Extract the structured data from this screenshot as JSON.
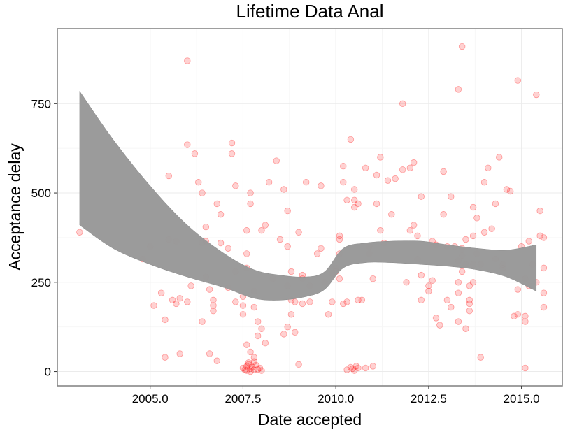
{
  "chart_data": {
    "type": "scatter",
    "title": "Lifetime Data Anal",
    "xlabel": "Date accepted",
    "ylabel": "Acceptance delay",
    "xlim": [
      2002.5,
      2016.1
    ],
    "ylim": [
      -40,
      960
    ],
    "x_ticks": [
      2005.0,
      2007.5,
      2010.0,
      2012.5,
      2015.0
    ],
    "x_tick_labels": [
      "2005.0",
      "2007.5",
      "2010.0",
      "2012.5",
      "2015.0"
    ],
    "y_ticks": [
      0,
      250,
      500,
      750
    ],
    "y_tick_labels": [
      "0",
      "250",
      "500",
      "750"
    ],
    "grid": true,
    "legend": "none",
    "point_color": "#ff0000",
    "band_color": "#999999",
    "points": [
      [
        2003.1,
        390
      ],
      [
        2004.8,
        315
      ],
      [
        2005.0,
        350
      ],
      [
        2005.1,
        185
      ],
      [
        2005.3,
        220
      ],
      [
        2005.4,
        145
      ],
      [
        2005.4,
        40
      ],
      [
        2005.5,
        548
      ],
      [
        2005.5,
        370
      ],
      [
        2005.6,
        200
      ],
      [
        2005.7,
        365
      ],
      [
        2005.7,
        190
      ],
      [
        2005.8,
        50
      ],
      [
        2005.8,
        205
      ],
      [
        2006.0,
        635
      ],
      [
        2006.0,
        195
      ],
      [
        2006.0,
        870
      ],
      [
        2006.1,
        240
      ],
      [
        2006.2,
        610
      ],
      [
        2006.3,
        530
      ],
      [
        2006.4,
        500
      ],
      [
        2006.4,
        140
      ],
      [
        2006.5,
        405
      ],
      [
        2006.5,
        365
      ],
      [
        2006.4,
        360
      ],
      [
        2006.5,
        265
      ],
      [
        2006.6,
        230
      ],
      [
        2006.6,
        50
      ],
      [
        2006.7,
        200
      ],
      [
        2006.7,
        185
      ],
      [
        2006.7,
        170
      ],
      [
        2006.8,
        30
      ],
      [
        2006.8,
        470
      ],
      [
        2006.9,
        360
      ],
      [
        2006.9,
        440
      ],
      [
        2007.1,
        345
      ],
      [
        2007.2,
        610
      ],
      [
        2007.1,
        235
      ],
      [
        2007.2,
        640
      ],
      [
        2007.3,
        520
      ],
      [
        2007.3,
        280
      ],
      [
        2007.3,
        195
      ],
      [
        2007.5,
        210
      ],
      [
        2007.5,
        185
      ],
      [
        2007.6,
        330
      ],
      [
        2007.6,
        395
      ],
      [
        2007.6,
        290
      ],
      [
        2007.7,
        470
      ],
      [
        2007.7,
        500
      ],
      [
        2007.8,
        225
      ],
      [
        2007.8,
        180
      ],
      [
        2007.5,
        160
      ],
      [
        2007.6,
        75
      ],
      [
        2007.7,
        55
      ],
      [
        2007.8,
        40
      ],
      [
        2007.9,
        100
      ],
      [
        2007.9,
        140
      ],
      [
        2008.0,
        120
      ],
      [
        2008.1,
        80
      ],
      [
        2008.0,
        395
      ],
      [
        2008.1,
        410
      ],
      [
        2008.2,
        530
      ],
      [
        2008.3,
        260
      ],
      [
        2008.4,
        590
      ],
      [
        2008.5,
        370
      ],
      [
        2008.6,
        510
      ],
      [
        2008.7,
        240
      ],
      [
        2008.7,
        350
      ],
      [
        2008.7,
        450
      ],
      [
        2008.8,
        280
      ],
      [
        2008.6,
        105
      ],
      [
        2008.7,
        125
      ],
      [
        2008.8,
        160
      ],
      [
        2008.8,
        200
      ],
      [
        2008.9,
        110
      ],
      [
        2008.9,
        195
      ],
      [
        2009.0,
        390
      ],
      [
        2009.0,
        20
      ],
      [
        2009.1,
        260
      ],
      [
        2009.1,
        270
      ],
      [
        2009.1,
        190
      ],
      [
        2009.2,
        530
      ],
      [
        2009.3,
        240
      ],
      [
        2009.3,
        195
      ],
      [
        2009.5,
        330
      ],
      [
        2009.6,
        345
      ],
      [
        2009.6,
        520
      ],
      [
        2009.7,
        250
      ],
      [
        2009.8,
        160
      ],
      [
        2009.9,
        195
      ],
      [
        2009.9,
        275
      ],
      [
        2010.0,
        280
      ],
      [
        2010.0,
        290
      ],
      [
        2010.1,
        260
      ],
      [
        2010.1,
        330
      ],
      [
        2010.1,
        370
      ],
      [
        2010.1,
        380
      ],
      [
        2010.2,
        530
      ],
      [
        2010.2,
        575
      ],
      [
        2010.2,
        190
      ],
      [
        2010.3,
        480
      ],
      [
        2010.3,
        195
      ],
      [
        2010.4,
        650
      ],
      [
        2010.5,
        480
      ],
      [
        2010.5,
        510
      ],
      [
        2010.5,
        460
      ],
      [
        2010.6,
        470
      ],
      [
        2010.6,
        200
      ],
      [
        2010.7,
        200
      ],
      [
        2010.8,
        10
      ],
      [
        2010.8,
        570
      ],
      [
        2010.9,
        350
      ],
      [
        2010.9,
        330
      ],
      [
        2011.0,
        15
      ],
      [
        2011.0,
        260
      ],
      [
        2011.1,
        470
      ],
      [
        2011.1,
        550
      ],
      [
        2011.2,
        600
      ],
      [
        2011.2,
        395
      ],
      [
        2011.3,
        360
      ],
      [
        2011.4,
        535
      ],
      [
        2011.5,
        440
      ],
      [
        2011.6,
        540
      ],
      [
        2011.8,
        750
      ],
      [
        2011.8,
        565
      ],
      [
        2011.9,
        250
      ],
      [
        2012.0,
        570
      ],
      [
        2012.0,
        395
      ],
      [
        2012.1,
        410
      ],
      [
        2012.2,
        380
      ],
      [
        2012.2,
        315
      ],
      [
        2012.3,
        270
      ],
      [
        2012.3,
        200
      ],
      [
        2012.5,
        240
      ],
      [
        2012.5,
        225
      ],
      [
        2012.6,
        255
      ],
      [
        2012.6,
        365
      ],
      [
        2012.7,
        355
      ],
      [
        2012.7,
        150
      ],
      [
        2012.8,
        130
      ],
      [
        2012.9,
        560
      ],
      [
        2012.9,
        440
      ],
      [
        2013.0,
        350
      ],
      [
        2013.0,
        200
      ],
      [
        2013.1,
        180
      ],
      [
        2013.1,
        490
      ],
      [
        2013.2,
        350
      ],
      [
        2013.3,
        140
      ],
      [
        2013.3,
        220
      ],
      [
        2013.3,
        250
      ],
      [
        2013.3,
        310
      ],
      [
        2013.4,
        345
      ],
      [
        2013.4,
        280
      ],
      [
        2013.4,
        325
      ],
      [
        2013.5,
        300
      ],
      [
        2013.5,
        120
      ],
      [
        2013.5,
        370
      ],
      [
        2013.6,
        200
      ],
      [
        2013.6,
        170
      ],
      [
        2013.6,
        190
      ],
      [
        2013.6,
        240
      ],
      [
        2013.7,
        250
      ],
      [
        2013.7,
        380
      ],
      [
        2013.7,
        460
      ],
      [
        2013.7,
        300
      ],
      [
        2013.8,
        430
      ],
      [
        2013.8,
        330
      ],
      [
        2013.9,
        40
      ],
      [
        2013.9,
        300
      ],
      [
        2014.0,
        390
      ],
      [
        2014.0,
        530
      ],
      [
        2014.1,
        570
      ],
      [
        2014.2,
        400
      ],
      [
        2014.3,
        470
      ],
      [
        2014.3,
        315
      ],
      [
        2014.4,
        600
      ],
      [
        2014.5,
        300
      ],
      [
        2014.5,
        290
      ],
      [
        2014.6,
        510
      ],
      [
        2014.7,
        505
      ],
      [
        2014.8,
        155
      ],
      [
        2014.9,
        160
      ],
      [
        2014.9,
        230
      ],
      [
        2014.9,
        815
      ],
      [
        2015.0,
        350
      ],
      [
        2015.1,
        10
      ],
      [
        2015.1,
        260
      ],
      [
        2015.1,
        155
      ],
      [
        2015.1,
        140
      ],
      [
        2015.2,
        365
      ],
      [
        2015.2,
        240
      ],
      [
        2015.3,
        300
      ],
      [
        2015.4,
        250
      ],
      [
        2015.4,
        775
      ],
      [
        2015.5,
        450
      ],
      [
        2015.5,
        380
      ],
      [
        2015.6,
        290
      ],
      [
        2015.6,
        180
      ],
      [
        2015.6,
        375
      ],
      [
        2015.6,
        220
      ],
      [
        2013.3,
        790
      ],
      [
        2013.4,
        910
      ],
      [
        2012.3,
        490
      ],
      [
        2012.1,
        585
      ]
    ],
    "cluster_2007_7": [
      [
        2007.5,
        10
      ],
      [
        2007.55,
        5
      ],
      [
        2007.6,
        15
      ],
      [
        2007.6,
        3
      ],
      [
        2007.65,
        20
      ],
      [
        2007.7,
        8
      ],
      [
        2007.7,
        0
      ],
      [
        2007.75,
        12
      ],
      [
        2007.8,
        5
      ],
      [
        2007.85,
        18
      ],
      [
        2007.9,
        6
      ],
      [
        2007.95,
        10
      ],
      [
        2008.0,
        3
      ],
      [
        2007.65,
        25
      ],
      [
        2007.8,
        28
      ]
    ],
    "cluster_2010_4": [
      [
        2010.3,
        5
      ],
      [
        2010.4,
        12
      ],
      [
        2010.45,
        8
      ],
      [
        2010.5,
        3
      ],
      [
        2010.55,
        15
      ],
      [
        2010.6,
        10
      ]
    ],
    "smooth_band": {
      "x": [
        2003.1,
        2004.0,
        2005.0,
        2006.0,
        2007.0,
        2007.8,
        2008.5,
        2009.2,
        2009.7,
        2010.2,
        2010.8,
        2011.5,
        2012.3,
        2013.0,
        2013.8,
        2014.6,
        2015.4
      ],
      "upper": [
        785,
        650,
        520,
        410,
        330,
        285,
        270,
        265,
        280,
        345,
        360,
        365,
        365,
        355,
        345,
        340,
        355
      ],
      "lower": [
        410,
        345,
        300,
        265,
        235,
        205,
        200,
        210,
        230,
        290,
        305,
        305,
        300,
        295,
        285,
        265,
        225
      ]
    }
  }
}
